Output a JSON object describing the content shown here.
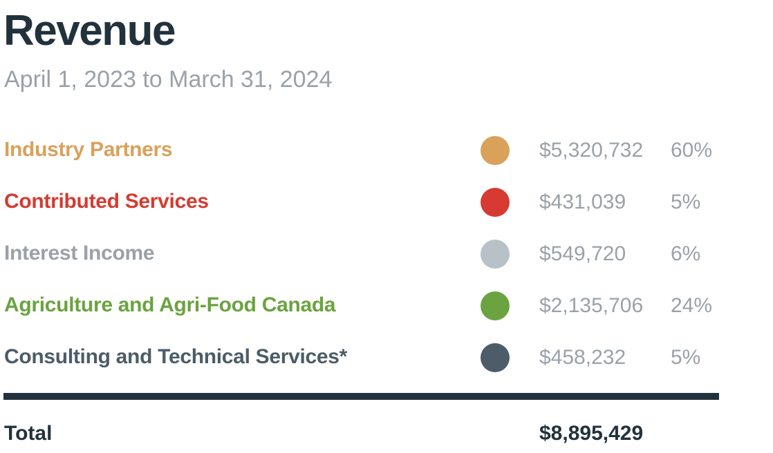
{
  "header": {
    "title": "Revenue",
    "subtitle": "April 1, 2023 to March 31, 2024"
  },
  "rows": [
    {
      "label": "Industry Partners",
      "amount": "$5,320,732",
      "percent": "60%",
      "color": "#d9a15a"
    },
    {
      "label": "Contributed Services",
      "amount": "$431,039",
      "percent": "5%",
      "color": "#d63a30"
    },
    {
      "label": "Interest Income",
      "amount": "$549,720",
      "percent": "6%",
      "color": "#b9c1c8"
    },
    {
      "label": "Agriculture and Agri-Food Canada",
      "amount": "$2,135,706",
      "percent": "24%",
      "color": "#6aa33f"
    },
    {
      "label": "Consulting and Technical Services*",
      "amount": "$458,232",
      "percent": "5%",
      "color": "#4c5c68",
      "label_color": "#4c5c68"
    }
  ],
  "total": {
    "label": "Total",
    "amount": "$8,895,429"
  },
  "colors": {
    "heading": "#22323d",
    "muted": "#9aa1a8",
    "gray_label": "#9aa1a8"
  }
}
